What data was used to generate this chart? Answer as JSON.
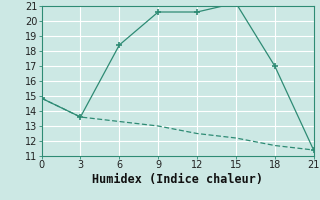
{
  "line1_x": [
    0,
    3,
    6,
    9,
    12,
    15,
    18,
    21
  ],
  "line1_y": [
    14.85,
    13.6,
    18.4,
    20.6,
    20.6,
    21.2,
    17.0,
    11.4
  ],
  "line2_x": [
    0,
    3,
    6,
    9,
    12,
    15,
    18,
    21
  ],
  "line2_y": [
    14.85,
    13.6,
    13.3,
    13.0,
    12.5,
    12.2,
    11.7,
    11.4
  ],
  "line_color": "#2e8b74",
  "xlabel": "Humidex (Indice chaleur)",
  "ylim": [
    11,
    21
  ],
  "xlim": [
    0,
    21
  ],
  "yticks": [
    11,
    12,
    13,
    14,
    15,
    16,
    17,
    18,
    19,
    20,
    21
  ],
  "xticks": [
    0,
    3,
    6,
    9,
    12,
    15,
    18,
    21
  ],
  "bg_color": "#cce8e4",
  "grid_color": "#ffffff",
  "tick_color": "#2e8b74",
  "xlabel_fontsize": 8.5,
  "tick_fontsize": 7
}
